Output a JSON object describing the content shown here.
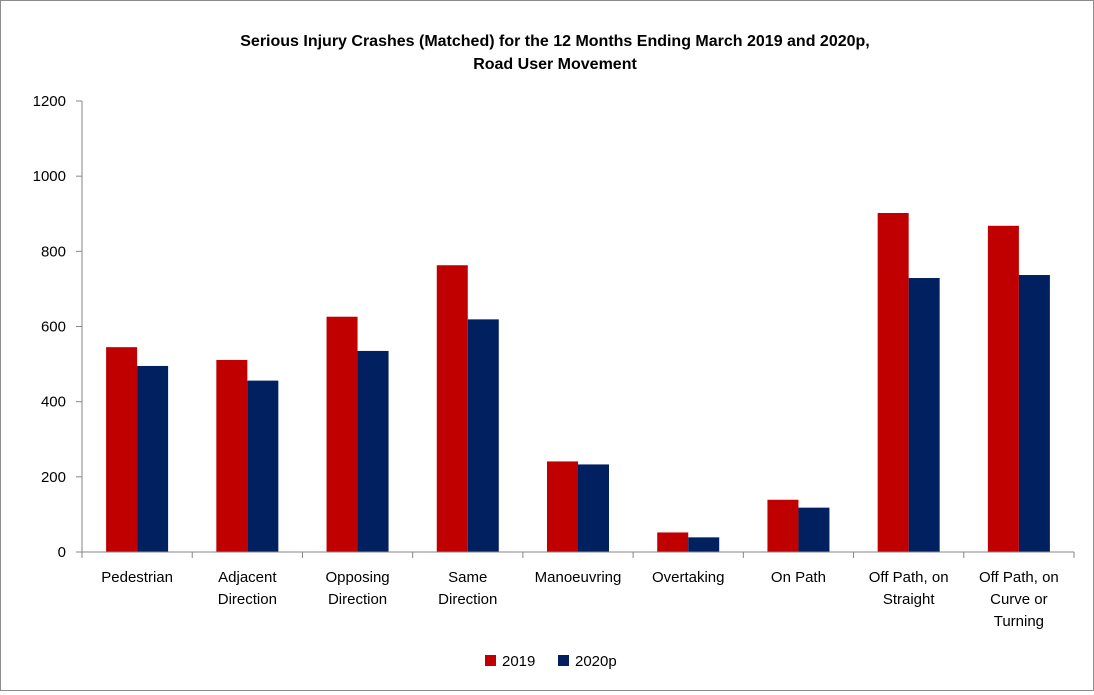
{
  "colors": {
    "series_2019": "#c00000",
    "series_2020p": "#002060",
    "axis": "#868686"
  },
  "chart_data": {
    "type": "bar",
    "title": "Serious Injury Crashes (Matched) for the 12 Months Ending March 2019 and 2020p,",
    "subtitle": "Road User Movement",
    "xlabel": "",
    "ylabel": "",
    "ylim": [
      0,
      1200
    ],
    "yticks": [
      "0",
      "200",
      "400",
      "600",
      "800",
      "1000",
      "1200"
    ],
    "grid": false,
    "legend_position": "bottom",
    "categories": [
      [
        "Pedestrian"
      ],
      [
        "Adjacent",
        "Direction"
      ],
      [
        "Opposing",
        "Direction"
      ],
      [
        "Same",
        "Direction"
      ],
      [
        "Manoeuvring"
      ],
      [
        "Overtaking"
      ],
      [
        "On Path"
      ],
      [
        "Off Path, on",
        "Straight"
      ],
      [
        "Off Path, on",
        "Curve or",
        "Turning"
      ]
    ],
    "series": [
      {
        "name": "2019",
        "values": [
          545,
          511,
          626,
          763,
          241,
          52,
          139,
          902,
          868
        ]
      },
      {
        "name": "2020p",
        "values": [
          495,
          456,
          535,
          619,
          233,
          39,
          118,
          729,
          737
        ]
      }
    ]
  }
}
